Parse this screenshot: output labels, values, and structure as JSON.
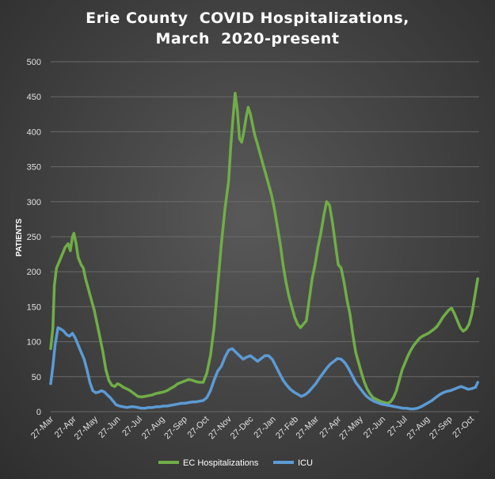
{
  "chart_data": {
    "type": "line",
    "title": "Erie County  COVID Hospitalizations,",
    "subtitle": "March  2020-present",
    "ylabel": "PATIENTS",
    "xlabel": "",
    "ylim": [
      0,
      500
    ],
    "yticks": [
      0,
      50,
      100,
      150,
      200,
      250,
      300,
      350,
      400,
      450,
      500
    ],
    "xlim": [
      0,
      590
    ],
    "xticks": [
      {
        "x": 0,
        "label": "27-Mar"
      },
      {
        "x": 31,
        "label": "27-Apr"
      },
      {
        "x": 61,
        "label": "27-May"
      },
      {
        "x": 92,
        "label": "27-Jun"
      },
      {
        "x": 122,
        "label": "27-Jul"
      },
      {
        "x": 153,
        "label": "27-Aug"
      },
      {
        "x": 184,
        "label": "27-Sep"
      },
      {
        "x": 214,
        "label": "27-Oct"
      },
      {
        "x": 245,
        "label": "27-Nov"
      },
      {
        "x": 275,
        "label": "27-Dec"
      },
      {
        "x": 306,
        "label": "27-Jan"
      },
      {
        "x": 337,
        "label": "27-Feb"
      },
      {
        "x": 365,
        "label": "27-Mar"
      },
      {
        "x": 396,
        "label": "27-Apr"
      },
      {
        "x": 426,
        "label": "27-May"
      },
      {
        "x": 457,
        "label": "27-Jun"
      },
      {
        "x": 487,
        "label": "27-Jul"
      },
      {
        "x": 518,
        "label": "27-Aug"
      },
      {
        "x": 549,
        "label": "27-Sep"
      },
      {
        "x": 579,
        "label": "27-Oct"
      }
    ],
    "grid": true,
    "legend": "bottom",
    "series": [
      {
        "name": "EC Hospitalizations",
        "color": "#70AD47",
        "x": [
          0,
          3,
          5,
          8,
          12,
          16,
          20,
          24,
          27,
          30,
          32,
          35,
          38,
          42,
          45,
          48,
          52,
          56,
          60,
          64,
          68,
          72,
          76,
          80,
          84,
          88,
          92,
          96,
          100,
          104,
          108,
          112,
          116,
          120,
          125,
          130,
          135,
          140,
          145,
          150,
          155,
          160,
          165,
          170,
          175,
          180,
          185,
          190,
          195,
          200,
          205,
          210,
          215,
          220,
          225,
          230,
          235,
          240,
          245,
          248,
          251,
          254,
          257,
          260,
          263,
          266,
          269,
          272,
          275,
          278,
          281,
          284,
          288,
          292,
          296,
          300,
          304,
          308,
          312,
          316,
          320,
          324,
          328,
          332,
          336,
          340,
          344,
          348,
          352,
          356,
          360,
          364,
          368,
          372,
          376,
          380,
          384,
          388,
          392,
          396,
          400,
          404,
          408,
          412,
          416,
          420,
          424,
          428,
          432,
          436,
          440,
          444,
          448,
          452,
          456,
          460,
          464,
          468,
          472,
          476,
          480,
          484,
          488,
          492,
          496,
          500,
          504,
          508,
          512,
          516,
          520,
          524,
          528,
          532,
          536,
          540,
          544,
          548,
          552,
          556,
          560,
          564,
          568,
          572,
          576,
          580,
          584,
          588
        ],
        "values": [
          90,
          120,
          180,
          205,
          215,
          225,
          235,
          240,
          230,
          250,
          255,
          240,
          220,
          210,
          205,
          190,
          175,
          160,
          145,
          125,
          105,
          85,
          60,
          45,
          38,
          36,
          40,
          38,
          35,
          33,
          31,
          28,
          25,
          22,
          21,
          22,
          23,
          24,
          26,
          27,
          28,
          30,
          33,
          36,
          40,
          42,
          44,
          46,
          45,
          43,
          42,
          42,
          55,
          80,
          120,
          180,
          240,
          290,
          330,
          380,
          420,
          455,
          430,
          390,
          385,
          400,
          420,
          435,
          425,
          410,
          395,
          385,
          370,
          355,
          340,
          325,
          310,
          290,
          265,
          240,
          210,
          185,
          165,
          150,
          135,
          125,
          120,
          125,
          130,
          160,
          190,
          210,
          235,
          255,
          280,
          300,
          295,
          270,
          240,
          210,
          205,
          185,
          160,
          140,
          110,
          85,
          70,
          55,
          42,
          32,
          25,
          20,
          18,
          16,
          14,
          13,
          12,
          14,
          20,
          30,
          45,
          60,
          70,
          80,
          88,
          95,
          100,
          105,
          108,
          110,
          112,
          115,
          118,
          122,
          128,
          135,
          140,
          145,
          148,
          140,
          130,
          120,
          115,
          118,
          125,
          140,
          165,
          190
        ]
      },
      {
        "name": "ICU",
        "color": "#5B9BD5",
        "x": [
          0,
          3,
          6,
          10,
          14,
          18,
          22,
          26,
          30,
          34,
          38,
          42,
          46,
          50,
          54,
          58,
          62,
          66,
          70,
          74,
          78,
          82,
          86,
          90,
          95,
          100,
          105,
          110,
          115,
          120,
          125,
          130,
          135,
          140,
          145,
          150,
          155,
          160,
          165,
          170,
          175,
          180,
          185,
          190,
          195,
          200,
          205,
          210,
          215,
          220,
          225,
          230,
          235,
          240,
          245,
          250,
          255,
          260,
          265,
          270,
          275,
          280,
          285,
          290,
          295,
          300,
          305,
          310,
          315,
          320,
          325,
          330,
          335,
          340,
          345,
          350,
          355,
          360,
          365,
          370,
          375,
          380,
          385,
          390,
          395,
          400,
          405,
          410,
          415,
          420,
          425,
          430,
          435,
          440,
          445,
          450,
          455,
          460,
          465,
          470,
          475,
          480,
          485,
          490,
          495,
          500,
          505,
          510,
          515,
          520,
          525,
          530,
          535,
          540,
          545,
          550,
          555,
          560,
          565,
          570,
          575,
          580,
          585,
          588
        ],
        "values": [
          40,
          65,
          95,
          120,
          118,
          115,
          110,
          108,
          112,
          105,
          95,
          85,
          75,
          60,
          42,
          30,
          27,
          28,
          30,
          28,
          24,
          20,
          15,
          10,
          8,
          7,
          6,
          7,
          7,
          6,
          5,
          5,
          6,
          6,
          7,
          7,
          8,
          8,
          9,
          10,
          11,
          12,
          12,
          13,
          14,
          14,
          15,
          16,
          20,
          30,
          45,
          58,
          65,
          78,
          88,
          90,
          85,
          80,
          75,
          78,
          80,
          76,
          72,
          76,
          80,
          80,
          75,
          65,
          55,
          45,
          38,
          32,
          28,
          25,
          22,
          24,
          28,
          34,
          40,
          48,
          55,
          62,
          68,
          72,
          76,
          75,
          70,
          62,
          52,
          42,
          35,
          28,
          22,
          18,
          15,
          13,
          11,
          10,
          9,
          8,
          7,
          6,
          5,
          5,
          4,
          4,
          5,
          7,
          10,
          13,
          16,
          20,
          24,
          27,
          29,
          30,
          32,
          34,
          36,
          34,
          32,
          33,
          35,
          42
        ]
      }
    ]
  }
}
